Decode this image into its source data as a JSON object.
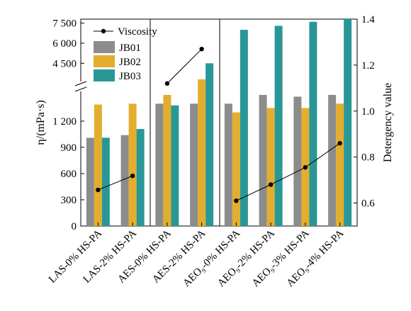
{
  "chart_data": {
    "type": "bar",
    "ylabel_left": "η/(mPa·s)",
    "ylabel_right": "Detergency value",
    "categories": [
      "LAS-0% HS-PA",
      "LAS-2% HS-PA",
      "AES-0% HS-PA",
      "AES-2% HS-PA",
      "AEO₉-0% HS-PA",
      "AEO₉-2% HS-PA",
      "AEO₉-3% HS-PA",
      "AEO₉-4% HS-PA"
    ],
    "category_groups": [
      [
        0,
        1
      ],
      [
        2,
        3
      ],
      [
        4,
        5,
        6,
        7
      ]
    ],
    "left_axis": {
      "scale": "broken",
      "lower": {
        "range": [
          0,
          1500
        ],
        "ticks": [
          0,
          300,
          600,
          900,
          1200
        ],
        "tick_labels": [
          "0",
          "300",
          "600",
          "900",
          "1 200"
        ]
      },
      "upper": {
        "range": [
          3300,
          7800
        ],
        "ticks": [
          4500,
          6000,
          7500
        ],
        "tick_labels": [
          "4 500",
          "6 000",
          "7 500"
        ]
      }
    },
    "right_axis": {
      "range": [
        0.5,
        1.4
      ],
      "ticks": [
        0.6,
        0.8,
        1.0,
        1.2,
        1.4
      ],
      "tick_labels": [
        "0.6",
        "0.8",
        "1.0",
        "1.2",
        "1.4"
      ]
    },
    "series": [
      {
        "name": "JB01",
        "kind": "bar",
        "axis": "left",
        "color": "#8c8c8c",
        "values": [
          1010,
          1040,
          1400,
          1400,
          1400,
          1500,
          1480,
          1500
        ]
      },
      {
        "name": "JB02",
        "kind": "bar",
        "axis": "left",
        "color": "#e3ad2e",
        "values": [
          1390,
          1400,
          1500,
          1520,
          1300,
          1350,
          1350,
          1400
        ]
      },
      {
        "name": "JB03",
        "kind": "bar",
        "axis": "left",
        "color": "#2a9797",
        "values": [
          1010,
          1110,
          1380,
          4500,
          7000,
          7300,
          7600,
          7800
        ]
      }
    ],
    "line_series": {
      "name": "Viscosity",
      "axis": "right",
      "color": "#000000",
      "segments": [
        {
          "categories": [
            0,
            1
          ],
          "values": [
            0.657,
            0.718
          ]
        },
        {
          "categories": [
            2,
            3
          ],
          "values": [
            1.12,
            1.27
          ]
        },
        {
          "categories": [
            4,
            5,
            6,
            7
          ],
          "values": [
            0.61,
            0.68,
            0.755,
            0.86
          ]
        }
      ]
    },
    "legend": {
      "placement": "top-left"
    },
    "grid": false
  }
}
